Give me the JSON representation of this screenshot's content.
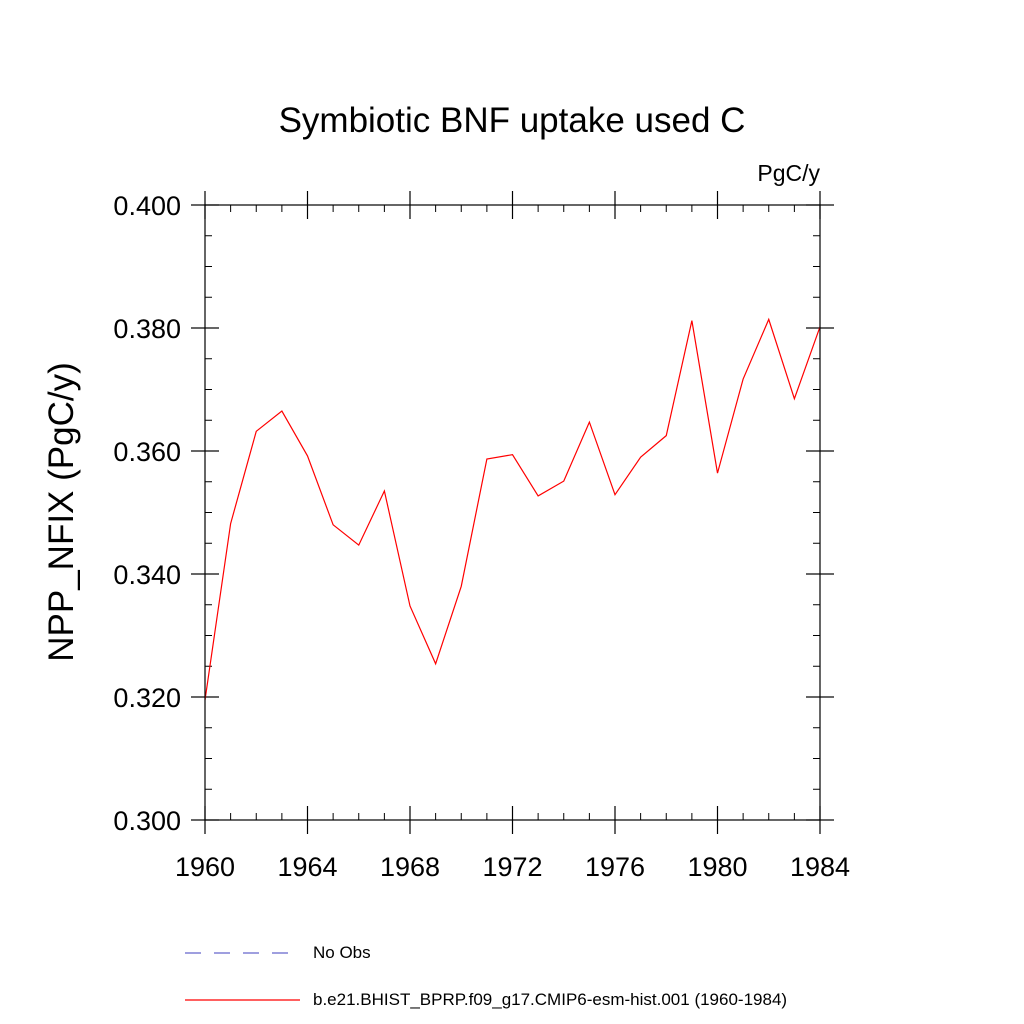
{
  "chart_data": {
    "type": "line",
    "title": "Symbiotic BNF uptake used C",
    "units_label": "PgC/y",
    "ylabel": "NPP_NFIX  (PgC/y)",
    "xlabel": "",
    "xlim": [
      1960,
      1984
    ],
    "ylim": [
      0.3,
      0.4
    ],
    "x_ticks": [
      1960,
      1964,
      1968,
      1972,
      1976,
      1980,
      1984
    ],
    "x_tick_labels": [
      "1960",
      "1964",
      "1968",
      "1972",
      "1976",
      "1980",
      "1984"
    ],
    "y_ticks": [
      0.3,
      0.32,
      0.34,
      0.36,
      0.38,
      0.4
    ],
    "y_tick_labels": [
      "0.300",
      "0.320",
      "0.340",
      "0.360",
      "0.380",
      "0.400"
    ],
    "x_minor_step": 1,
    "y_minor_step": 0.005,
    "grid": false,
    "legend_position": "bottom",
    "series": [
      {
        "name": "b.e21.BHIST_BPRP.f09_g17.CMIP6-esm-hist.001 (1960-1984)",
        "color": "#ff0000",
        "style": "solid",
        "x": [
          1960,
          1961,
          1962,
          1963,
          1964,
          1965,
          1966,
          1967,
          1968,
          1969,
          1970,
          1971,
          1972,
          1973,
          1974,
          1975,
          1976,
          1977,
          1978,
          1979,
          1980,
          1981,
          1982,
          1983,
          1984
        ],
        "values": [
          0.3195,
          0.3482,
          0.3632,
          0.3665,
          0.3592,
          0.348,
          0.3447,
          0.3535,
          0.3348,
          0.3254,
          0.338,
          0.3587,
          0.3594,
          0.3527,
          0.3551,
          0.3647,
          0.3529,
          0.359,
          0.3625,
          0.3812,
          0.3564,
          0.3717,
          0.3814,
          0.3685,
          0.3802
        ]
      }
    ],
    "legend": [
      {
        "label": "No Obs",
        "color": "#6666cc",
        "style": "dashed"
      },
      {
        "label": "b.e21.BHIST_BPRP.f09_g17.CMIP6-esm-hist.001 (1960-1984)",
        "color": "#ff0000",
        "style": "solid"
      }
    ]
  }
}
